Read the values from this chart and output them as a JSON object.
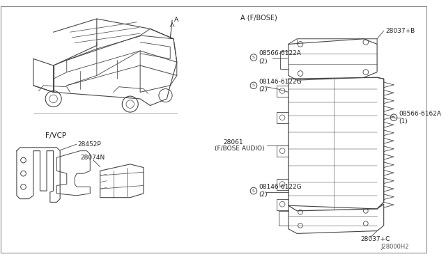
{
  "bg_color": "#ffffff",
  "line_color": "#444444",
  "text_color": "#222222",
  "diagram_id": "J28000H2",
  "labels": {
    "A_FBOSE": "A (F/BOSE)",
    "FVCP": "F/VCP",
    "28037B": "28037+B",
    "28037C": "28037+C",
    "28452P": "28452P",
    "28074N": "28074N",
    "A_label": "A",
    "08566_6122A": "08566-6122A",
    "08146_6122G": "08146-6122G",
    "08566_6162A": "08566-6162A",
    "28061": "28061",
    "fbose_audio": "(F/BOSE AUDIO)",
    "qty2": "(2)",
    "qty1": "(1)"
  }
}
